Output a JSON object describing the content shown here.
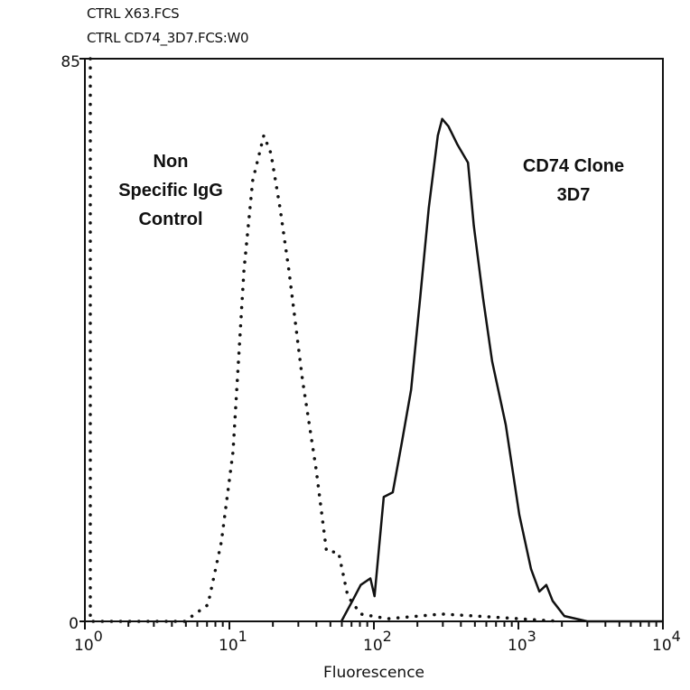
{
  "header": {
    "line1": "CTRL X63.FCS",
    "line2": "CTRL CD74_3D7.FCS:W0"
  },
  "chart_data": {
    "type": "line",
    "title": "",
    "xlabel": "Fluorescence",
    "ylabel": "",
    "xscale": "log",
    "xlim": [
      1,
      10000
    ],
    "ylim": [
      0,
      85
    ],
    "x_tick_labels": [
      {
        "base": "10",
        "exp": "0",
        "value": 1
      },
      {
        "base": "10",
        "exp": "1",
        "value": 10
      },
      {
        "base": "10",
        "exp": "2",
        "value": 100
      },
      {
        "base": "10",
        "exp": "3",
        "value": 1000
      },
      {
        "base": "10",
        "exp": "4",
        "value": 10000
      }
    ],
    "y_tick_labels": [
      "0",
      "85"
    ],
    "y_ticks": [
      0,
      85
    ],
    "grid": false,
    "series": [
      {
        "style": "dotted",
        "color": "#111111",
        "x": [
          1.09,
          1.09,
          4.9,
          7.1,
          8.8,
          10.6,
          12.6,
          14.5,
          17.3,
          19.4,
          22.4,
          25.8,
          32,
          39.8,
          47,
          57,
          66,
          81,
          125,
          297,
          610,
          1950
        ],
        "y": [
          85,
          0,
          0,
          2.5,
          12,
          25.6,
          53,
          66.6,
          73.4,
          70.7,
          62.5,
          53,
          36.6,
          23,
          10.6,
          10.4,
          3.8,
          1.1,
          0.4,
          1.1,
          0.7,
          0
        ]
      },
      {
        "style": "solid",
        "color": "#111111",
        "x": [
          59.6,
          71,
          81,
          94.6,
          101,
          117,
          135,
          156,
          181,
          209,
          240,
          277,
          297,
          328,
          379,
          448,
          491,
          570,
          658,
          818,
          1015,
          1224,
          1396,
          1561,
          1725,
          2080,
          2995,
          10000
        ],
        "y": [
          0,
          3.1,
          5.5,
          6.5,
          3.8,
          18.8,
          19.5,
          27,
          35,
          48.8,
          62.5,
          73.4,
          75.9,
          74.8,
          72,
          69.3,
          59.8,
          48.8,
          39.3,
          29.7,
          16.1,
          7.9,
          4.5,
          5.5,
          3.1,
          0.8,
          0,
          0
        ]
      }
    ],
    "annotations": [
      {
        "lines": [
          "Non",
          "Specific IgG",
          "Control"
        ]
      },
      {
        "lines": [
          "CD74 Clone",
          "3D7"
        ]
      }
    ]
  }
}
